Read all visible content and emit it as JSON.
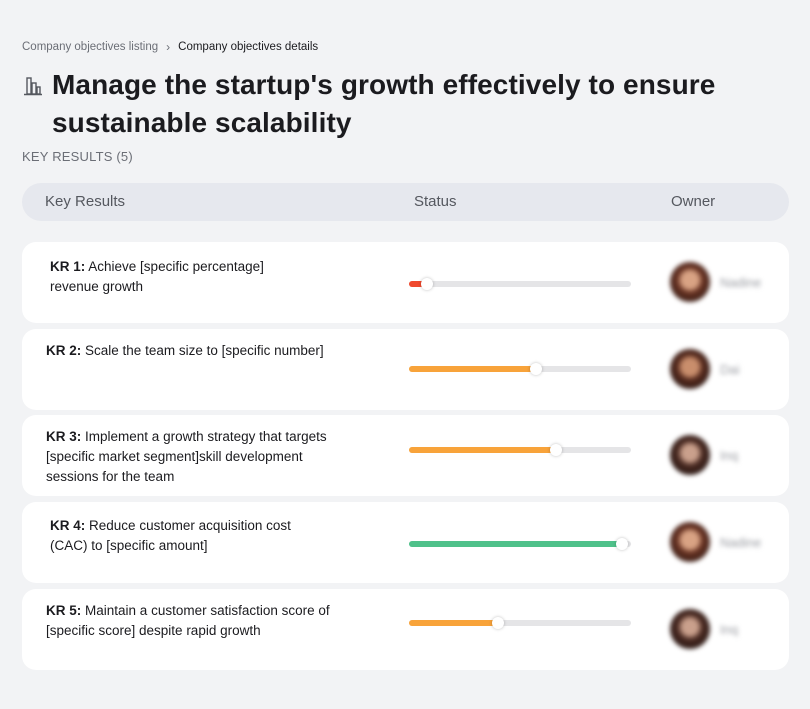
{
  "breadcrumb": {
    "parent": "Company objectives listing",
    "separator": "›",
    "current": "Company objectives details"
  },
  "objective": {
    "icon": "building-chart-icon",
    "title_line1": "Manage the startup's growth effectively to ensure",
    "title_line2": "sustainable scalability"
  },
  "key_results_count": "KEY RESULTS (5)",
  "table": {
    "headers": {
      "key_results": "Key Results",
      "status": "Status",
      "owner": "Owner"
    }
  },
  "key_results": [
    {
      "id": "KR 1:",
      "lines": [
        "Achieve [specific percentage]",
        "revenue growth"
      ],
      "progress": 0.08,
      "color": "#f0492e",
      "owner": "Nadine"
    },
    {
      "id": "KR 2:",
      "lines": [
        "Scale the team size to [specific number]"
      ],
      "progress": 0.57,
      "color": "#f8a33a",
      "owner": "Dai"
    },
    {
      "id": "KR 3:",
      "lines": [
        "Implement a growth strategy that targets",
        "[specific market segment]skill development",
        "sessions for the team"
      ],
      "progress": 0.66,
      "color": "#f8a33a",
      "owner": "Inq"
    },
    {
      "id": "KR 4:",
      "lines": [
        "Reduce customer acquisition cost",
        "(CAC) to [specific amount]"
      ],
      "progress": 0.96,
      "color": "#4fc18a",
      "owner": "Nadine"
    },
    {
      "id": "KR 5:",
      "lines": [
        "Maintain a customer satisfaction score of",
        "[specific score] despite rapid growth"
      ],
      "progress": 0.4,
      "color": "#f8a33a",
      "owner": "Inq"
    }
  ]
}
